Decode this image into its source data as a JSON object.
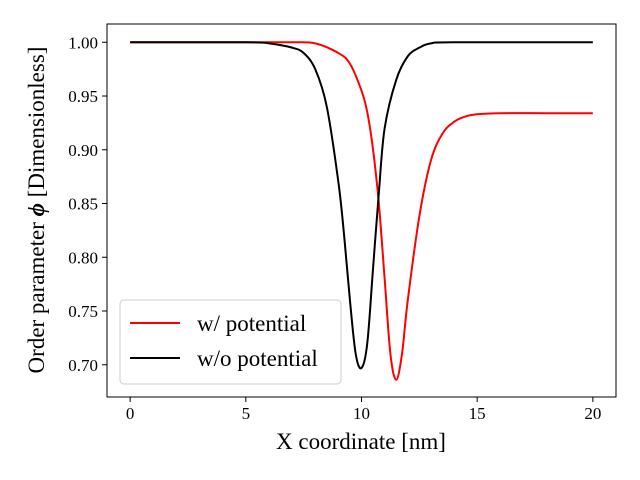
{
  "chart_data": {
    "type": "line",
    "title": "",
    "xlabel": "X coordinate [nm]",
    "ylabel_prefix": "Order parameter ",
    "ylabel_symbol": "ϕ",
    "ylabel_suffix": " [Dimensionless]",
    "xlim": [
      -1,
      21
    ],
    "ylim": [
      0.67,
      1.017
    ],
    "xticks": [
      0,
      5,
      10,
      15,
      20
    ],
    "xtick_labels": [
      "0",
      "5",
      "10",
      "15",
      "20"
    ],
    "yticks": [
      0.7,
      0.75,
      0.8,
      0.85,
      0.9,
      0.95,
      1.0
    ],
    "ytick_labels": [
      "0.70",
      "0.75",
      "0.80",
      "0.85",
      "0.90",
      "0.95",
      "1.00"
    ],
    "grid": false,
    "legend_position": "lower-left",
    "series": [
      {
        "name": "w/ potential",
        "color": "#ff0000",
        "x": [
          0,
          5,
          7,
          8,
          9,
          9.5,
          10,
          10.25,
          10.5,
          10.75,
          11,
          11.25,
          11.5,
          11.75,
          12,
          12.5,
          13,
          13.5,
          14,
          14.5,
          15,
          16,
          18,
          20
        ],
        "y": [
          1.0,
          1.0,
          1.0,
          0.999,
          0.99,
          0.98,
          0.955,
          0.935,
          0.9,
          0.85,
          0.78,
          0.71,
          0.686,
          0.71,
          0.76,
          0.838,
          0.89,
          0.915,
          0.926,
          0.931,
          0.933,
          0.934,
          0.934,
          0.934
        ]
      },
      {
        "name": "w/o potential",
        "color": "#000000",
        "x": [
          0,
          5,
          6,
          7,
          7.5,
          8,
          8.5,
          9,
          9.25,
          9.5,
          9.75,
          10,
          10.25,
          10.5,
          10.75,
          11,
          11.5,
          12,
          12.5,
          13,
          14,
          20
        ],
        "y": [
          1.0,
          1.0,
          0.999,
          0.995,
          0.99,
          0.975,
          0.94,
          0.87,
          0.82,
          0.76,
          0.71,
          0.697,
          0.72,
          0.79,
          0.86,
          0.92,
          0.965,
          0.987,
          0.995,
          0.999,
          1.0,
          1.0
        ]
      }
    ]
  }
}
